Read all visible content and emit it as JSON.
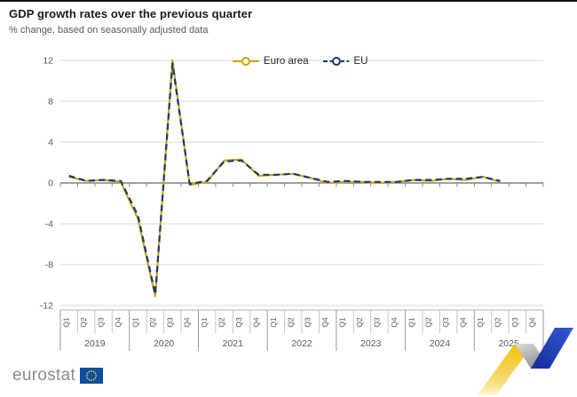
{
  "header": {
    "title": "GDP growth rates over the previous quarter",
    "subtitle": "% change, based on seasonally adjusted data"
  },
  "legend": {
    "items": [
      {
        "label": "Euro area",
        "color": "#CDA50F",
        "style": "solid"
      },
      {
        "label": "EU",
        "color": "#1B3877",
        "style": "dashed"
      }
    ]
  },
  "chart_data": {
    "type": "line",
    "categories": [
      "2019-Q1",
      "2019-Q2",
      "2019-Q3",
      "2019-Q4",
      "2020-Q1",
      "2020-Q2",
      "2020-Q3",
      "2020-Q4",
      "2021-Q1",
      "2021-Q2",
      "2021-Q3",
      "2021-Q4",
      "2022-Q1",
      "2022-Q2",
      "2022-Q3",
      "2022-Q4",
      "2023-Q1",
      "2023-Q2",
      "2023-Q3",
      "2023-Q4",
      "2024-Q1",
      "2024-Q2",
      "2024-Q3",
      "2024-Q4",
      "2025-Q1",
      "2025-Q2",
      "2025-Q3",
      "2025-Q4"
    ],
    "quarter_labels": [
      "Q1",
      "Q2",
      "Q3",
      "Q4"
    ],
    "years": [
      "2019",
      "2020",
      "2021",
      "2022",
      "2023",
      "2024",
      "2025"
    ],
    "series": [
      {
        "name": "Euro area",
        "color": "#CDA50F",
        "dash": "",
        "values": [
          0.6,
          0.2,
          0.3,
          0.1,
          -3.5,
          -11.1,
          12.0,
          -0.2,
          0.1,
          2.2,
          2.3,
          0.7,
          0.8,
          0.9,
          0.5,
          0.0,
          0.1,
          0.1,
          0.0,
          0.1,
          0.3,
          0.2,
          0.4,
          0.3,
          0.6,
          0.1,
          null,
          null
        ]
      },
      {
        "name": "EU",
        "color": "#1B3877",
        "dash": "7,4.5",
        "values": [
          0.7,
          0.2,
          0.3,
          0.2,
          -3.2,
          -10.9,
          11.7,
          -0.1,
          0.2,
          2.1,
          2.2,
          0.8,
          0.8,
          0.9,
          0.5,
          0.1,
          0.2,
          0.1,
          0.1,
          0.1,
          0.3,
          0.3,
          0.4,
          0.4,
          0.6,
          0.2,
          null,
          null
        ]
      }
    ],
    "title": "GDP growth rates over the previous quarter",
    "xlabel": "",
    "ylabel": "",
    "ylim": [
      -12,
      12
    ],
    "yticks": [
      12,
      8,
      4,
      0,
      -4,
      -8,
      -12
    ],
    "grid": true,
    "legend_position": "top"
  },
  "footer": {
    "logo_text": "eurostat"
  },
  "colors": {
    "grid": "#d9d9d9",
    "zero_line": "#808080",
    "axis_tick": "#8c8c8c",
    "axis_text": "#595959",
    "band_line": "#b3b3b3",
    "flag_blue": "#0b4ea2",
    "flag_stars": "#ffd617",
    "ribbon_yellow_top": "#F2BE0A",
    "ribbon_yellow_bottom": "#FDF4D5",
    "ribbon_gray_light": "#DEDEDE",
    "ribbon_gray_dark": "#8F8F8F",
    "ribbon_blue_light": "#3358D4",
    "ribbon_blue_dark": "#16309B"
  }
}
